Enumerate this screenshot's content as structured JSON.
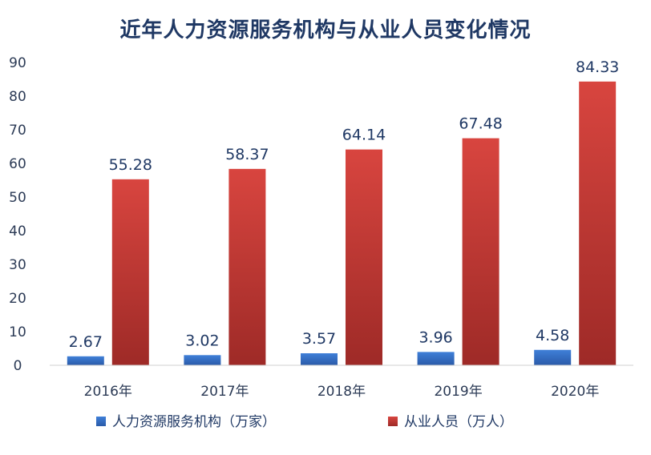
{
  "chart_data": {
    "type": "bar",
    "title": "近年人力资源服务机构与从业人员变化情况",
    "xlabel": "",
    "ylabel": "",
    "ylim": [
      0,
      90
    ],
    "yticks": [
      0,
      10,
      20,
      30,
      40,
      50,
      60,
      70,
      80,
      90
    ],
    "categories": [
      "2016年",
      "2017年",
      "2018年",
      "2019年",
      "2020年"
    ],
    "series": [
      {
        "name": "人力资源服务机构（万家）",
        "values": [
          2.67,
          3.02,
          3.57,
          3.96,
          4.58
        ],
        "labels": [
          "2.67",
          "3.02",
          "3.57",
          "3.96",
          "4.58"
        ],
        "color": "#2e6bc4"
      },
      {
        "name": "从业人员（万人）",
        "values": [
          55.28,
          58.37,
          64.14,
          67.48,
          84.33
        ],
        "labels": [
          "55.28",
          "58.37",
          "64.14",
          "67.48",
          "84.33"
        ],
        "color": "#c43b3a"
      }
    ],
    "grid": false,
    "legend_position": "bottom"
  }
}
